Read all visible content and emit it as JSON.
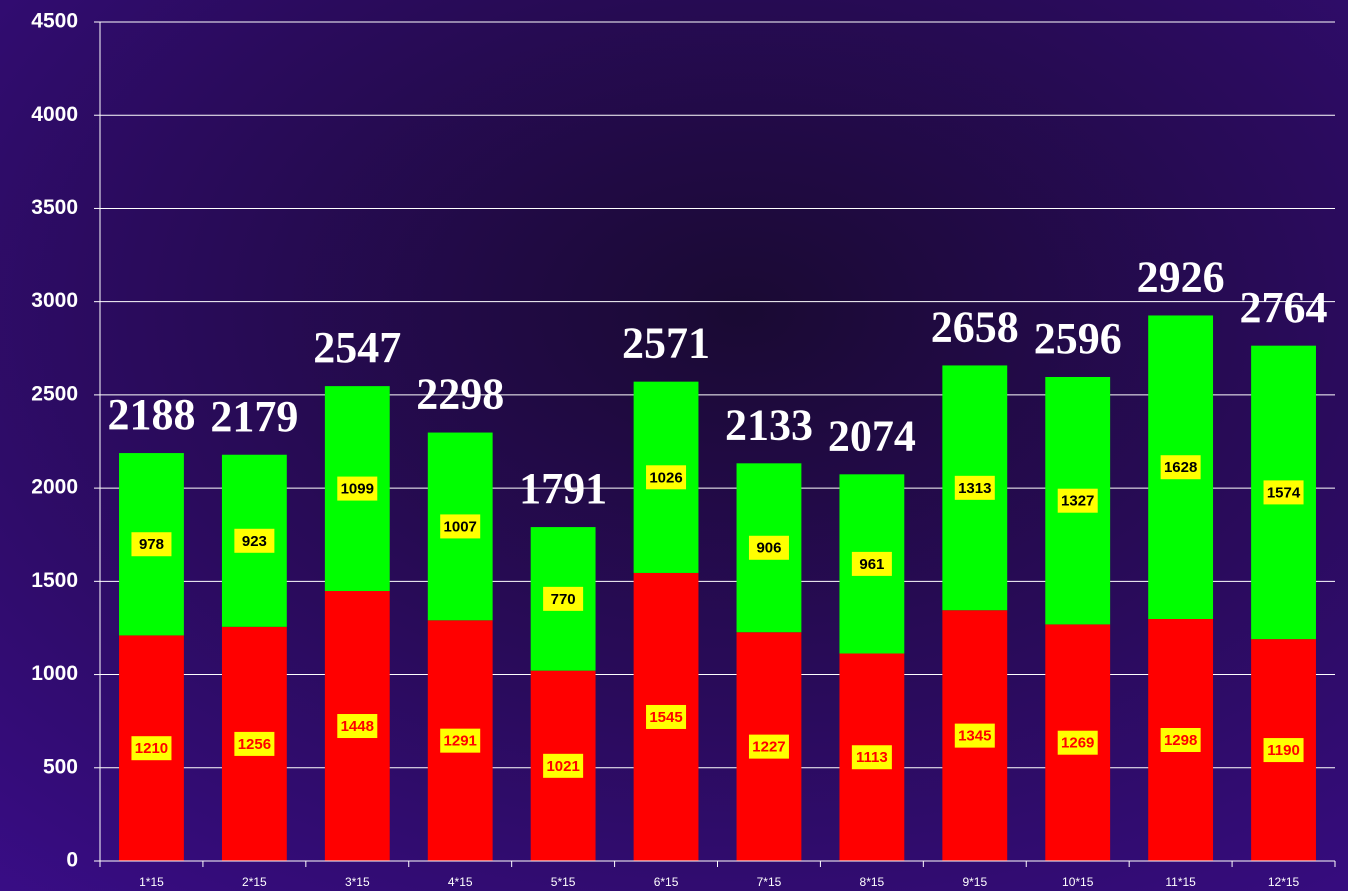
{
  "chart_data": {
    "type": "stacked_bar",
    "categories": [
      "1*15",
      "2*15",
      "3*15",
      "4*15",
      "5*15",
      "6*15",
      "7*15",
      "8*15",
      "9*15",
      "10*15",
      "11*15",
      "12*15"
    ],
    "series": [
      {
        "color": "#ff0000",
        "label_color": "#ff0000",
        "values": [
          1210,
          1256,
          1448,
          1291,
          1021,
          1545,
          1227,
          1113,
          1345,
          1269,
          1298,
          1190
        ]
      },
      {
        "color": "#00ff00",
        "label_color": "#000000",
        "values": [
          978,
          923,
          1099,
          1007,
          770,
          1026,
          906,
          961,
          1313,
          1327,
          1628,
          1574
        ]
      }
    ],
    "total_labels": [
      2188,
      2179,
      2547,
      2298,
      1791,
      2571,
      2133,
      2074,
      2658,
      2596,
      2926,
      2764
    ],
    "ylim": [
      0,
      4500
    ],
    "yticks": [
      0,
      500,
      1000,
      1500,
      2000,
      2500,
      3000,
      3500,
      4000,
      4500
    ],
    "grid": true
  }
}
